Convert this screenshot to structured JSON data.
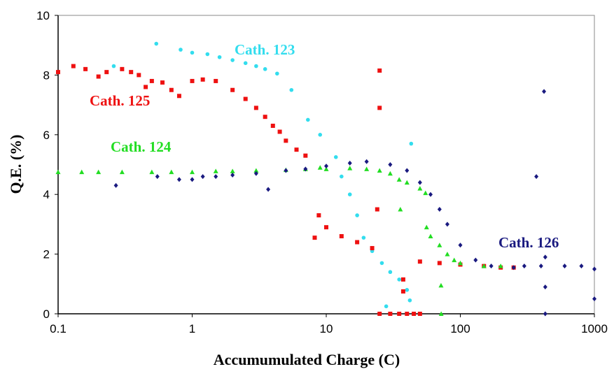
{
  "chart_data": {
    "type": "scatter",
    "xlabel": "Accumumulated Charge (C)",
    "ylabel": "Q.E. (%)",
    "xscale": "log",
    "xlim": [
      0.1,
      1000
    ],
    "ylim": [
      0,
      10
    ],
    "xticks": [
      0.1,
      1,
      10,
      100,
      1000
    ],
    "yticks": [
      0,
      2,
      4,
      6,
      8,
      10
    ],
    "series": [
      {
        "name": "Cath. 123",
        "color": "#33ddee",
        "marker": "circle",
        "x": [
          0.26,
          0.54,
          0.82,
          1.0,
          1.3,
          1.6,
          2.0,
          2.5,
          3.0,
          3.5,
          4.3,
          5.5,
          7.3,
          9.0,
          11.8,
          13,
          15,
          17,
          19,
          22,
          26,
          30,
          35,
          40,
          42,
          28,
          43
        ],
        "y": [
          8.3,
          9.05,
          8.85,
          8.75,
          8.7,
          8.6,
          8.5,
          8.4,
          8.3,
          8.2,
          8.05,
          7.5,
          6.5,
          6.0,
          5.25,
          4.6,
          4.0,
          3.3,
          2.55,
          2.1,
          1.7,
          1.4,
          1.15,
          0.8,
          0.45,
          0.25,
          5.7
        ]
      },
      {
        "name": "Cath. 125",
        "color": "#ee1111",
        "marker": "square",
        "x": [
          0.1,
          0.13,
          0.16,
          0.2,
          0.23,
          0.3,
          0.35,
          0.4,
          0.45,
          0.5,
          0.6,
          0.7,
          0.8,
          1.0,
          1.2,
          1.5,
          2,
          2.5,
          3,
          3.5,
          4,
          4.5,
          5,
          6,
          7,
          8.2,
          8.8,
          10,
          13,
          17,
          22,
          25,
          25,
          24,
          37.5,
          37.5,
          25,
          30,
          35,
          40,
          45,
          50,
          50,
          70,
          100,
          150,
          200,
          250
        ],
        "y": [
          8.1,
          8.3,
          8.2,
          7.95,
          8.1,
          8.2,
          8.1,
          8.0,
          7.6,
          7.8,
          7.75,
          7.5,
          7.3,
          7.8,
          7.85,
          7.8,
          7.5,
          7.2,
          6.9,
          6.6,
          6.3,
          6.1,
          5.8,
          5.5,
          5.3,
          2.55,
          3.3,
          2.9,
          2.6,
          2.4,
          2.2,
          8.15,
          6.9,
          3.5,
          1.15,
          0.75,
          0,
          0,
          0,
          0,
          0,
          0,
          1.75,
          1.7,
          1.65,
          1.6,
          1.55,
          1.55
        ]
      },
      {
        "name": "Cath. 124",
        "color": "#22dd22",
        "marker": "triangle",
        "x": [
          0.1,
          0.15,
          0.2,
          0.3,
          0.5,
          0.7,
          1,
          1.5,
          2,
          3,
          5,
          7,
          9,
          10,
          15,
          20,
          25,
          30,
          35,
          40,
          50,
          55,
          56,
          60,
          70,
          80,
          90,
          100,
          150,
          200,
          35.7,
          71.8,
          72
        ],
        "y": [
          4.75,
          4.75,
          4.75,
          4.75,
          4.75,
          4.75,
          4.75,
          4.78,
          4.78,
          4.8,
          4.82,
          4.85,
          4.9,
          4.85,
          4.88,
          4.85,
          4.8,
          4.7,
          4.5,
          4.4,
          4.2,
          4.05,
          2.9,
          2.6,
          2.3,
          2.0,
          1.8,
          1.7,
          1.6,
          1.6,
          3.5,
          0.95,
          0
        ]
      },
      {
        "name": "Cath. 126",
        "color": "#1a1a80",
        "marker": "diamond",
        "x": [
          0.27,
          0.55,
          0.8,
          1,
          1.2,
          1.5,
          2,
          3,
          3.69,
          5,
          7,
          10,
          15,
          20,
          30,
          40,
          50,
          60,
          70,
          80,
          100,
          130,
          170,
          250,
          300,
          400,
          600,
          800,
          1000,
          421,
          369,
          430,
          430,
          430,
          1000
        ],
        "y": [
          4.3,
          4.6,
          4.5,
          4.5,
          4.6,
          4.6,
          4.65,
          4.7,
          4.17,
          4.8,
          4.85,
          4.95,
          5.05,
          5.1,
          5.0,
          4.8,
          4.4,
          4.0,
          3.5,
          3.0,
          2.3,
          1.8,
          1.6,
          1.55,
          1.6,
          1.6,
          1.6,
          1.6,
          1.5,
          7.45,
          4.6,
          1.9,
          0.9,
          0,
          0.5
        ]
      }
    ]
  }
}
